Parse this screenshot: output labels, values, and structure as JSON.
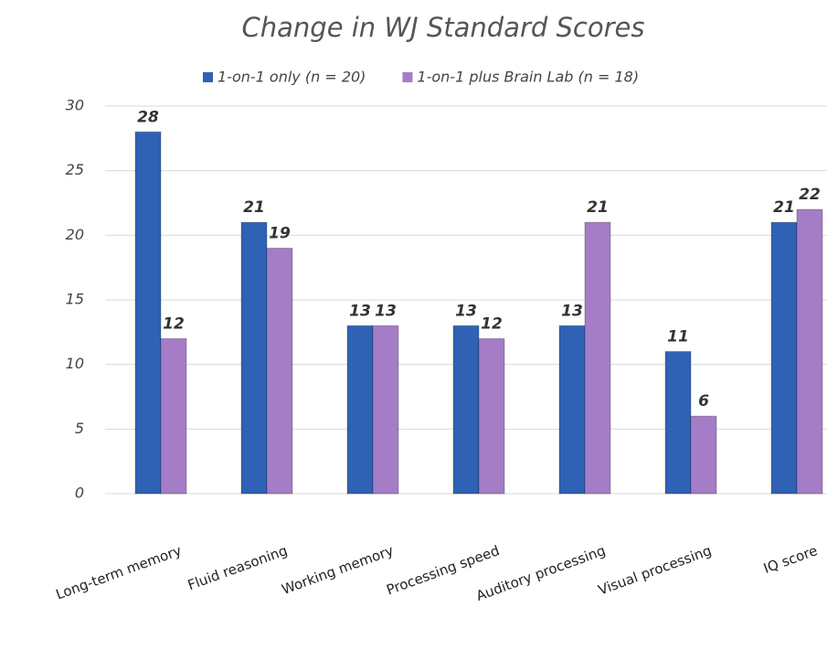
{
  "chart_data": {
    "type": "bar",
    "title": "Change in WJ Standard Scores",
    "categories": [
      "Long-term memory",
      "Fluid reasoning",
      "Working memory",
      "Processing speed",
      "Auditory processing",
      "Visual processing",
      "IQ score"
    ],
    "series": [
      {
        "name": "1-on-1 only (n = 20)",
        "color": "#2f62b4",
        "values": [
          28,
          21,
          13,
          13,
          13,
          11,
          21
        ]
      },
      {
        "name": "1-on-1 plus Brain Lab (n = 18)",
        "color": "#a57cc6",
        "values": [
          12,
          19,
          13,
          12,
          21,
          6,
          22
        ]
      }
    ],
    "ylim": [
      0,
      30
    ],
    "yticks": [
      0,
      5,
      10,
      15,
      20,
      25,
      30
    ],
    "grid": true,
    "legend": "top"
  }
}
